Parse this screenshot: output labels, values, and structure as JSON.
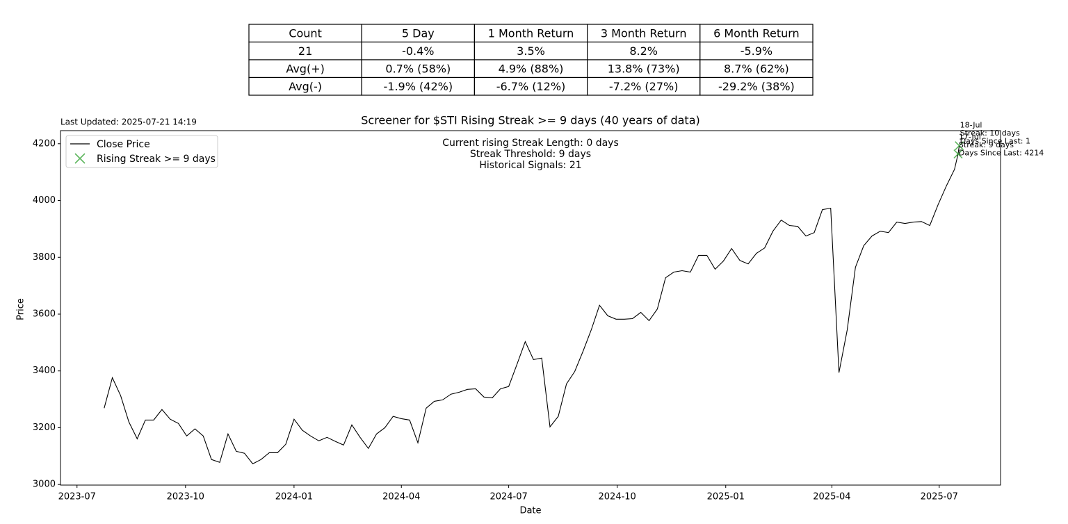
{
  "table": {
    "header": [
      "Count",
      "5 Day",
      "1 Month Return",
      "3 Month Return",
      "6 Month Return"
    ],
    "rows": [
      [
        "21",
        "-0.4%",
        "3.5%",
        "8.2%",
        "-5.9%"
      ],
      [
        "Avg(+)",
        "0.7% (58%)",
        "4.9% (88%)",
        "13.8% (73%)",
        "8.7% (62%)"
      ],
      [
        "Avg(-)",
        "-1.9% (42%)",
        "-6.7% (12%)",
        "-7.2% (27%)",
        "-29.2% (38%)"
      ]
    ]
  },
  "chart_data": {
    "type": "line",
    "title": "Screener for $STI Rising Streak >= 9 days (40 years of data)",
    "last_updated": "Last Updated: 2025-07-21 14:19",
    "info_lines": [
      "Current rising Streak Length: 0 days",
      "Streak Threshold: 9 days",
      "Historical Signals: 21"
    ],
    "x_label": "Date",
    "y_label": "Price",
    "xlim": [
      "2023-06-17",
      "2025-08-22"
    ],
    "ylim": [
      2998,
      4246
    ],
    "xticks": [
      {
        "value": "2023-07-01",
        "label": "2023-07"
      },
      {
        "value": "2023-10-01",
        "label": "2023-10"
      },
      {
        "value": "2024-01-01",
        "label": "2024-01"
      },
      {
        "value": "2024-04-01",
        "label": "2024-04"
      },
      {
        "value": "2024-07-01",
        "label": "2024-07"
      },
      {
        "value": "2024-10-01",
        "label": "2024-10"
      },
      {
        "value": "2025-01-01",
        "label": "2025-01"
      },
      {
        "value": "2025-04-01",
        "label": "2025-04"
      },
      {
        "value": "2025-07-01",
        "label": "2025-07"
      }
    ],
    "yticks": [
      3000,
      3200,
      3400,
      3600,
      3800,
      4000,
      4200
    ],
    "grid": false,
    "legend": "upper left",
    "series": [
      {
        "name": "Close Price",
        "color": "#000000",
        "x": [
          "2023-07-24",
          "2023-07-31",
          "2023-08-07",
          "2023-08-14",
          "2023-08-21",
          "2023-08-28",
          "2023-09-04",
          "2023-09-11",
          "2023-09-18",
          "2023-09-25",
          "2023-10-02",
          "2023-10-09",
          "2023-10-16",
          "2023-10-23",
          "2023-10-30",
          "2023-11-06",
          "2023-11-13",
          "2023-11-20",
          "2023-11-27",
          "2023-12-04",
          "2023-12-11",
          "2023-12-18",
          "2023-12-25",
          "2024-01-01",
          "2024-01-08",
          "2024-01-15",
          "2024-01-22",
          "2024-01-29",
          "2024-02-05",
          "2024-02-12",
          "2024-02-19",
          "2024-02-26",
          "2024-03-04",
          "2024-03-11",
          "2024-03-18",
          "2024-03-25",
          "2024-04-01",
          "2024-04-08",
          "2024-04-15",
          "2024-04-22",
          "2024-04-29",
          "2024-05-06",
          "2024-05-13",
          "2024-05-20",
          "2024-05-27",
          "2024-06-03",
          "2024-06-10",
          "2024-06-17",
          "2024-06-24",
          "2024-07-01",
          "2024-07-08",
          "2024-07-15",
          "2024-07-22",
          "2024-07-29",
          "2024-08-05",
          "2024-08-12",
          "2024-08-19",
          "2024-08-26",
          "2024-09-02",
          "2024-09-09",
          "2024-09-16",
          "2024-09-23",
          "2024-09-30",
          "2024-10-07",
          "2024-10-14",
          "2024-10-21",
          "2024-10-28",
          "2024-11-04",
          "2024-11-11",
          "2024-11-18",
          "2024-11-25",
          "2024-12-02",
          "2024-12-09",
          "2024-12-16",
          "2024-12-23",
          "2024-12-30",
          "2025-01-06",
          "2025-01-13",
          "2025-01-20",
          "2025-01-27",
          "2025-02-03",
          "2025-02-10",
          "2025-02-17",
          "2025-02-24",
          "2025-03-03",
          "2025-03-10",
          "2025-03-17",
          "2025-03-24",
          "2025-03-31",
          "2025-04-07",
          "2025-04-14",
          "2025-04-21",
          "2025-04-28",
          "2025-05-05",
          "2025-05-12",
          "2025-05-19",
          "2025-05-26",
          "2025-06-02",
          "2025-06-09",
          "2025-06-16",
          "2025-06-23",
          "2025-06-30",
          "2025-07-07",
          "2025-07-14",
          "2025-07-17",
          "2025-07-18"
        ],
        "values": [
          3269,
          3376,
          3313,
          3220,
          3161,
          3227,
          3227,
          3264,
          3230,
          3215,
          3171,
          3196,
          3171,
          3088,
          3078,
          3178,
          3117,
          3110,
          3073,
          3088,
          3112,
          3112,
          3142,
          3230,
          3191,
          3171,
          3154,
          3166,
          3152,
          3139,
          3210,
          3166,
          3127,
          3178,
          3200,
          3240,
          3232,
          3227,
          3147,
          3269,
          3293,
          3298,
          3318,
          3325,
          3335,
          3337,
          3308,
          3305,
          3337,
          3345,
          3423,
          3503,
          3440,
          3445,
          3203,
          3240,
          3354,
          3398,
          3469,
          3545,
          3631,
          3594,
          3582,
          3582,
          3584,
          3606,
          3577,
          3618,
          3728,
          3748,
          3753,
          3748,
          3807,
          3807,
          3758,
          3787,
          3831,
          3789,
          3777,
          3814,
          3833,
          3892,
          3931,
          3912,
          3909,
          3875,
          3887,
          3968,
          3973,
          3394,
          3545,
          3765,
          3841,
          3875,
          3892,
          3887,
          3924,
          3919,
          3924,
          3926,
          3912,
          3985,
          4051,
          4110,
          4164,
          4193
        ]
      },
      {
        "name": "Rising Streak >= 9 days",
        "type": "scatter",
        "marker": "x",
        "color": "#2ca02c",
        "x": [
          "2025-07-17",
          "2025-07-18"
        ],
        "values": [
          4164,
          4193
        ]
      }
    ],
    "annotations": [
      {
        "lines": [
          "17-Jul",
          "Streak: 9 days",
          "Days Since Last: 4214"
        ]
      },
      {
        "lines": [
          "18-Jul",
          "Streak: 10 days",
          "Days Since Last: 1"
        ]
      }
    ]
  }
}
